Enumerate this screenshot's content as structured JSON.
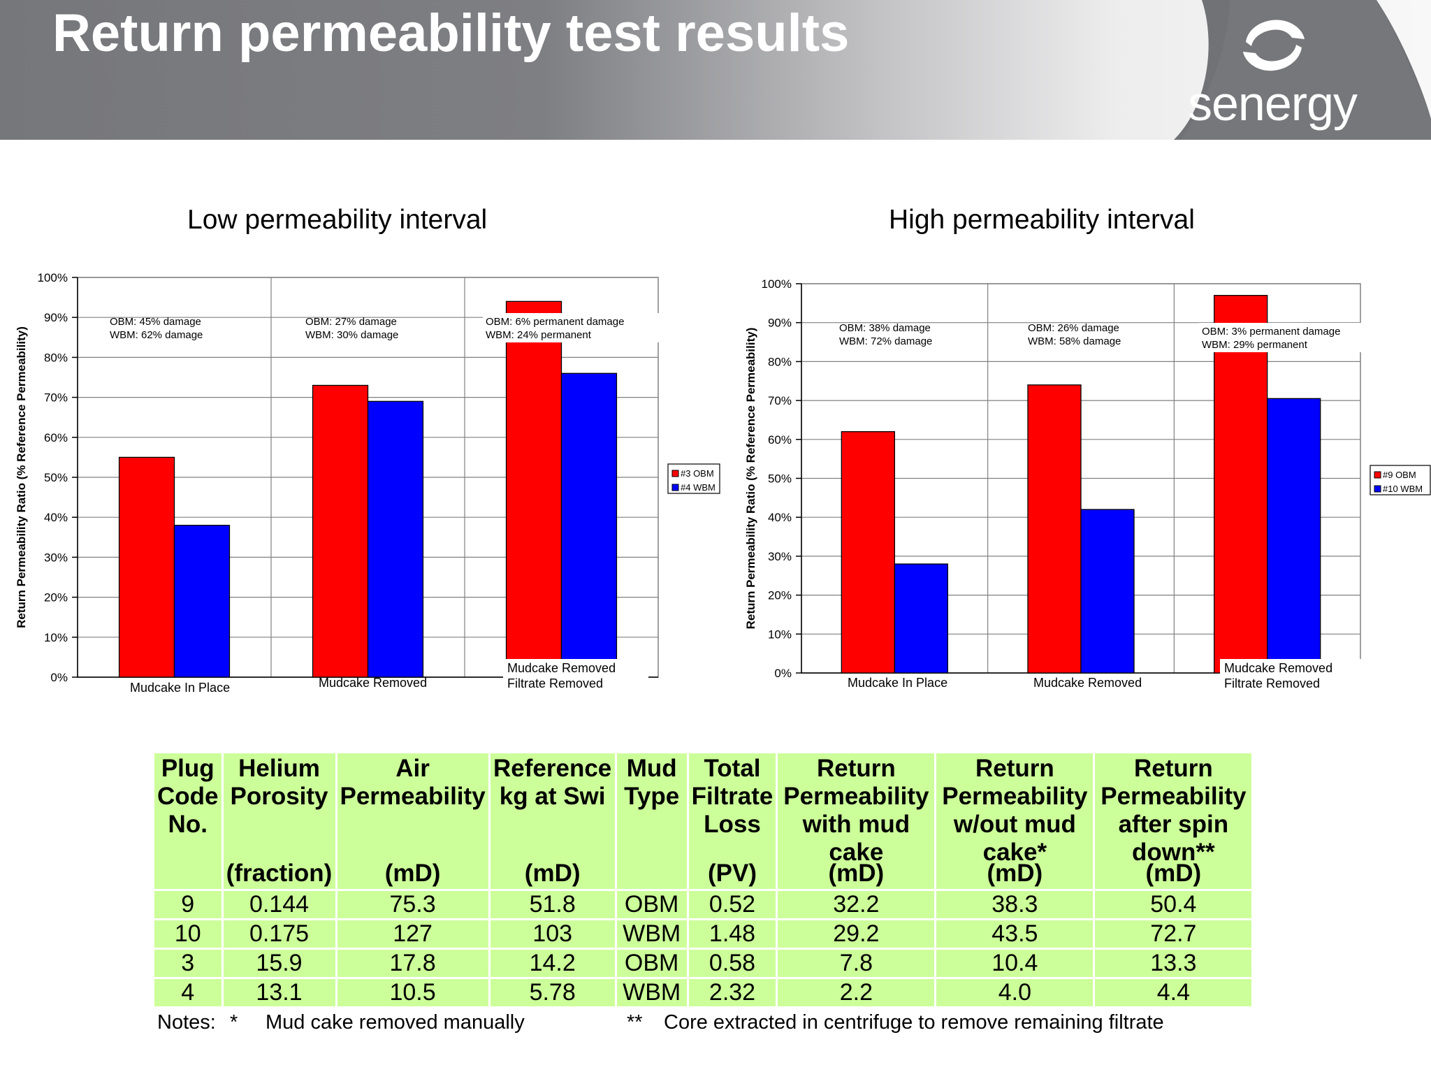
{
  "slide": {
    "title": "Return permeability test results",
    "logo_text": "senergy",
    "logo_icon": "senergy-swirl-logo"
  },
  "colors": {
    "obm": "#ff0000",
    "wbm": "#0000ff",
    "table_bg": "#ccff99",
    "header_gray": "#76777b"
  },
  "chart_data": [
    {
      "type": "bar",
      "title": "Low permeability interval",
      "ylabel": "Return Permeability Ratio (% Reference Permeability)",
      "xlabel": "",
      "ylim": [
        0,
        100
      ],
      "yticks": [
        "0%",
        "10%",
        "20%",
        "30%",
        "40%",
        "50%",
        "60%",
        "70%",
        "80%",
        "90%",
        "100%"
      ],
      "categories": [
        [
          "Mudcake In Place"
        ],
        [
          "Mudcake Removed"
        ],
        [
          "Mudcake Removed",
          "Filtrate Removed"
        ]
      ],
      "series": [
        {
          "name": "#3 OBM",
          "color": "#ff0000",
          "values": [
            55,
            73,
            94
          ]
        },
        {
          "name": "#4 WBM",
          "color": "#0000ff",
          "values": [
            38,
            69,
            76
          ]
        }
      ],
      "annotations": [
        [
          "OBM:  45% damage",
          "WBM:  62% damage"
        ],
        [
          "OBM:  27% damage",
          "WBM:  30% damage"
        ],
        [
          "OBM:  6% permanent damage",
          "WBM:  24% permanent"
        ]
      ],
      "grid": true,
      "legend": "right"
    },
    {
      "type": "bar",
      "title": "High permeability interval",
      "ylabel": "Return Permeability Ratio (% Reference Permeability)",
      "xlabel": "",
      "ylim": [
        0,
        100
      ],
      "yticks": [
        "0%",
        "10%",
        "20%",
        "30%",
        "40%",
        "50%",
        "60%",
        "70%",
        "80%",
        "90%",
        "100%"
      ],
      "categories": [
        [
          "Mudcake In Place"
        ],
        [
          "Mudcake Removed"
        ],
        [
          "Mudcake Removed",
          "Filtrate Removed"
        ]
      ],
      "series": [
        {
          "name": "#9 OBM",
          "color": "#ff0000",
          "values": [
            62,
            74,
            97
          ]
        },
        {
          "name": "#10 WBM",
          "color": "#0000ff",
          "values": [
            28,
            42,
            70.5
          ]
        }
      ],
      "annotations": [
        [
          "OBM:  38% damage",
          "WBM:  72% damage"
        ],
        [
          "OBM:  26% damage",
          "WBM:  58% damage"
        ],
        [
          "OBM:  3% permanent damage",
          "WBM:  29% permanent"
        ]
      ],
      "grid": true,
      "legend": "right"
    }
  ],
  "table": {
    "headers": [
      {
        "lines": [
          "Plug",
          "Code",
          "No."
        ],
        "unit": ""
      },
      {
        "lines": [
          "Helium",
          "Porosity"
        ],
        "unit": "(fraction)"
      },
      {
        "lines": [
          "Air",
          "Permeability"
        ],
        "unit": "(mD)"
      },
      {
        "lines": [
          "Reference",
          "kg at Swi"
        ],
        "unit": "(mD)"
      },
      {
        "lines": [
          "Mud",
          "Type"
        ],
        "unit": ""
      },
      {
        "lines": [
          "Total",
          "Filtrate",
          "Loss"
        ],
        "unit": "(PV)"
      },
      {
        "lines": [
          "Return",
          "Permeability",
          "with mud",
          "cake"
        ],
        "unit": "(mD)"
      },
      {
        "lines": [
          "Return",
          "Permeability",
          "w/out mud",
          "cake*"
        ],
        "unit": "(mD)"
      },
      {
        "lines": [
          "Return",
          "Permeability",
          "after spin",
          "down**"
        ],
        "unit": "(mD)"
      }
    ],
    "rows": [
      [
        "9",
        "0.144",
        "75.3",
        "51.8",
        "OBM",
        "0.52",
        "32.2",
        "38.3",
        "50.4"
      ],
      [
        "10",
        "0.175",
        "127",
        "103",
        "WBM",
        "1.48",
        "29.2",
        "43.5",
        "72.7"
      ],
      [
        "3",
        "15.9",
        "17.8",
        "14.2",
        "OBM",
        "0.58",
        "7.8",
        "10.4",
        "13.3"
      ],
      [
        "4",
        "13.1",
        "10.5",
        "5.78",
        "WBM",
        "2.32",
        "2.2",
        "4.0",
        "4.4"
      ]
    ]
  },
  "notes": {
    "label": "Notes:",
    "note1_mark": "*",
    "note1_text": "Mud cake removed manually",
    "note2_mark": "**",
    "note2_text": "Core extracted in centrifuge to remove remaining filtrate"
  }
}
